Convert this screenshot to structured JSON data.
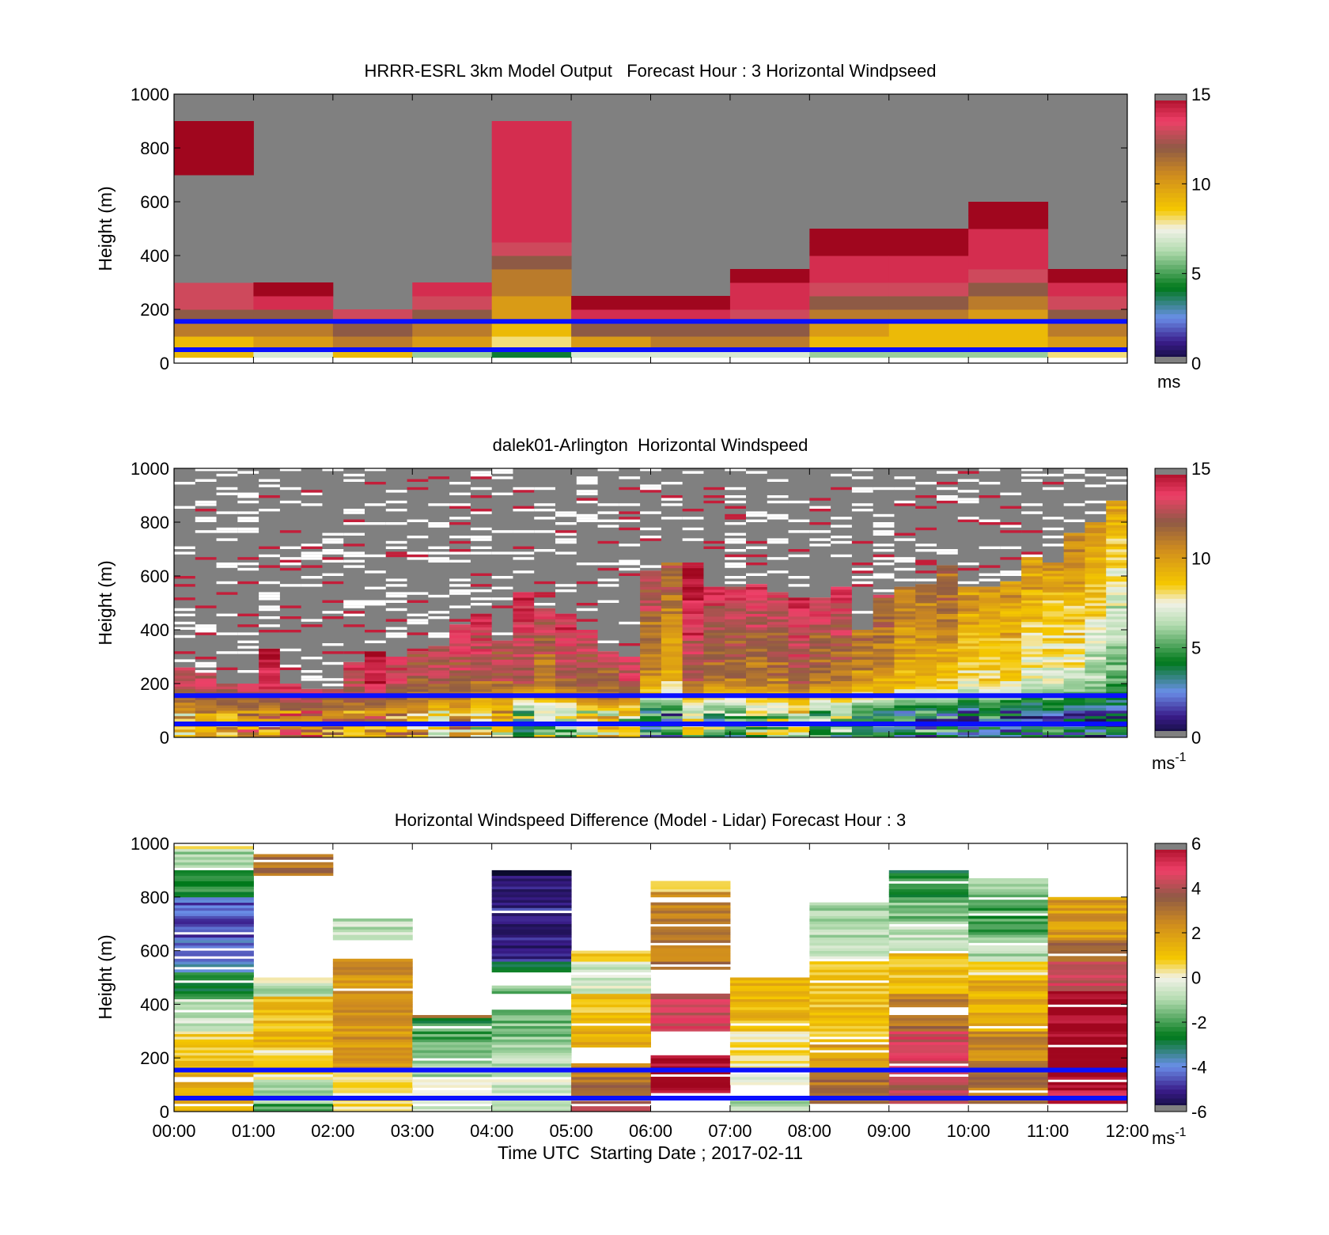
{
  "figure": {
    "xlabel": "Time UTC  Starting Date ; 2017-02-11",
    "x_ticks": [
      "00:00",
      "01:00",
      "02:00",
      "03:00",
      "04:00",
      "05:00",
      "06:00",
      "07:00",
      "08:00",
      "09:00",
      "10:00",
      "11:00",
      "12:00"
    ],
    "blue_reference_lines_m": [
      50,
      155
    ]
  },
  "chart_data": [
    {
      "type": "heatmap",
      "title": "HRRR-ESRL 3km Model Output   Forecast Hour : 3 Horizontal Windpseed",
      "ylabel": "Height (m)",
      "ylim": [
        0,
        1000
      ],
      "y_ticks": [
        "0",
        "200",
        "400",
        "600",
        "800",
        "1000"
      ],
      "colorbar": {
        "min": 0,
        "max": 15,
        "ticks": [
          "0",
          "5",
          "10",
          "15"
        ],
        "unit": "ms",
        "unit_sup": ""
      },
      "cell_height_m": 50,
      "hour_columns": [
        {
          "hour": "00:00",
          "windspeed_by_height": [
            9,
            9,
            11,
            12,
            13,
            13,
            0,
            0,
            0,
            0,
            0,
            0,
            0,
            0,
            15,
            15,
            15,
            15
          ]
        },
        {
          "hour": "01:00",
          "windspeed_by_height": [
            7,
            10,
            11,
            12,
            14,
            15
          ]
        },
        {
          "hour": "02:00",
          "windspeed_by_height": [
            9,
            11,
            12,
            13
          ]
        },
        {
          "hour": "03:00",
          "windspeed_by_height": [
            6,
            10,
            11,
            12,
            13,
            14
          ]
        },
        {
          "hour": "04:00",
          "windspeed_by_height": [
            4,
            8,
            9,
            10,
            10,
            11,
            11,
            12,
            13,
            14,
            14,
            14,
            14,
            14,
            14,
            14,
            14,
            14
          ]
        },
        {
          "hour": "05:00",
          "windspeed_by_height": [
            7,
            10,
            12,
            14,
            15
          ]
        },
        {
          "hour": "06:00",
          "windspeed_by_height": [
            7,
            11,
            12,
            14,
            15
          ]
        },
        {
          "hour": "07:00",
          "windspeed_by_height": [
            7,
            11,
            12,
            13,
            14,
            14,
            15
          ]
        },
        {
          "hour": "08:00",
          "windspeed_by_height": [
            6,
            9,
            10,
            11,
            12,
            13,
            14,
            14,
            15,
            15
          ]
        },
        {
          "hour": "09:00",
          "windspeed_by_height": [
            6,
            9,
            9,
            11,
            12,
            13,
            14,
            14,
            15,
            15
          ]
        },
        {
          "hour": "10:00",
          "windspeed_by_height": [
            6,
            9,
            9,
            10,
            11,
            12,
            13,
            14,
            14,
            14,
            15,
            15
          ]
        },
        {
          "hour": "11:00",
          "windspeed_by_height": [
            8,
            10,
            11,
            12,
            13,
            14,
            15
          ]
        }
      ]
    },
    {
      "type": "heatmap",
      "title": "dalek01-Arlington  Horizontal Windspeed",
      "ylabel": "Height (m)",
      "ylim": [
        0,
        1000
      ],
      "y_ticks": [
        "0",
        "200",
        "400",
        "600",
        "800",
        "1000"
      ],
      "colorbar": {
        "min": 0,
        "max": 15,
        "ticks": [
          "0",
          "5",
          "10",
          "15"
        ],
        "unit": "ms",
        "unit_sup": "-1"
      },
      "column_interval_minutes": 15,
      "valid_data_top_m": [
        260,
        240,
        200,
        200,
        330,
        200,
        180,
        180,
        280,
        320,
        300,
        320,
        340,
        420,
        460,
        360,
        540,
        480,
        460,
        400,
        320,
        300,
        620,
        650,
        640,
        560,
        560,
        570,
        540,
        520,
        520,
        560,
        400,
        530,
        560,
        570,
        640,
        560,
        560,
        580,
        670,
        650,
        760,
        800,
        880
      ],
      "windspeed_low_100_150_200_m": [
        [
          10,
          12,
          13
        ],
        [
          11,
          12,
          13
        ],
        [
          11,
          12,
          13
        ],
        [
          11,
          12,
          14
        ],
        [
          11,
          13,
          14
        ],
        [
          12,
          13,
          14
        ],
        [
          12,
          13,
          14
        ],
        [
          11,
          12,
          13
        ],
        [
          11,
          12,
          13
        ],
        [
          11,
          13,
          14
        ],
        [
          10,
          12,
          13
        ],
        [
          10,
          11,
          12
        ],
        [
          9,
          11,
          12
        ],
        [
          10,
          11,
          12
        ],
        [
          8,
          10,
          12
        ],
        [
          9,
          10,
          12
        ],
        [
          6,
          9,
          12
        ],
        [
          7,
          9,
          11
        ],
        [
          7,
          10,
          12
        ],
        [
          8,
          11,
          12
        ],
        [
          9,
          11,
          12
        ],
        [
          8,
          11,
          13
        ],
        [
          4,
          8,
          10
        ],
        [
          4,
          7,
          9
        ],
        [
          7,
          10,
          12
        ],
        [
          6,
          8,
          11
        ],
        [
          6,
          8,
          11
        ],
        [
          7,
          9,
          11
        ],
        [
          7,
          9,
          11
        ],
        [
          8,
          10,
          12
        ],
        [
          6,
          9,
          11
        ],
        [
          6,
          9,
          11
        ],
        [
          5,
          8,
          10
        ],
        [
          5,
          8,
          10
        ],
        [
          4,
          7,
          9
        ],
        [
          4,
          7,
          9
        ],
        [
          4,
          7,
          9
        ],
        [
          3,
          6,
          8
        ],
        [
          4,
          6,
          8
        ],
        [
          3,
          6,
          8
        ],
        [
          3,
          5,
          7
        ],
        [
          4,
          6,
          7
        ],
        [
          3,
          5,
          7
        ],
        [
          3,
          5,
          6
        ],
        [
          3,
          4,
          5
        ]
      ]
    },
    {
      "type": "heatmap",
      "title": "Horizontal Windspeed Difference (Model - Lidar) Forecast Hour : 3",
      "ylabel": "Height (m)",
      "ylim": [
        0,
        1000
      ],
      "y_ticks": [
        "0",
        "200",
        "400",
        "600",
        "800",
        "1000"
      ],
      "colorbar": {
        "min": -6,
        "max": 6,
        "ticks": [
          "-6",
          "-4",
          "-2",
          "0",
          "2",
          "4",
          "6"
        ],
        "unit": "ms",
        "unit_sup": "-1"
      },
      "hour_columns": [
        {
          "hour": "00:00",
          "segments_m": [
            [
              0,
              160,
              1.5
            ],
            [
              160,
              300,
              0.8
            ],
            [
              300,
              420,
              -0.6
            ],
            [
              420,
              520,
              -2.5
            ],
            [
              520,
              640,
              -4
            ],
            [
              640,
              800,
              -4.5
            ],
            [
              800,
              900,
              -2.2
            ],
            [
              900,
              980,
              -1
            ],
            [
              980,
              1000,
              1
            ]
          ]
        },
        {
          "hour": "01:00",
          "segments_m": [
            [
              0,
              30,
              -2
            ],
            [
              30,
              120,
              -0.8
            ],
            [
              120,
              230,
              0.5
            ],
            [
              230,
              380,
              1.2
            ],
            [
              380,
              430,
              1
            ],
            [
              430,
              470,
              -0.8
            ],
            [
              470,
              500,
              0
            ],
            [
              880,
              960,
              3
            ]
          ]
        },
        {
          "hour": "02:00",
          "segments_m": [
            [
              0,
              40,
              0.6
            ],
            [
              40,
              160,
              0.2
            ],
            [
              160,
              570,
              2.2
            ],
            [
              640,
              720,
              -0.8
            ]
          ]
        },
        {
          "hour": "03:00",
          "segments_m": [
            [
              0,
              120,
              -0.5
            ],
            [
              120,
              210,
              -1
            ],
            [
              210,
              260,
              -1.5
            ],
            [
              260,
              330,
              -2
            ],
            [
              330,
              350,
              -2.5
            ],
            [
              350,
              360,
              3
            ]
          ]
        },
        {
          "hour": "04:00",
          "segments_m": [
            [
              0,
              120,
              -0.5
            ],
            [
              120,
              280,
              -1
            ],
            [
              280,
              380,
              -1.5
            ],
            [
              440,
              470,
              -1.5
            ],
            [
              520,
              560,
              -2.5
            ],
            [
              560,
              760,
              -5
            ],
            [
              760,
              880,
              -5.5
            ],
            [
              880,
              900,
              -6
            ]
          ]
        },
        {
          "hour": "05:00",
          "segments_m": [
            [
              0,
              60,
              4
            ],
            [
              60,
              100,
              3.5
            ],
            [
              100,
              180,
              2.8
            ],
            [
              240,
              340,
              1.5
            ],
            [
              340,
              440,
              1
            ],
            [
              440,
              560,
              -0.5
            ],
            [
              560,
              600,
              0.8
            ]
          ]
        },
        {
          "hour": "06:00",
          "segments_m": [
            [
              70,
              210,
              6
            ],
            [
              300,
              440,
              4.5
            ],
            [
              530,
              560,
              3.5
            ],
            [
              560,
              820,
              2.8
            ],
            [
              820,
              850,
              0
            ],
            [
              850,
              860,
              0.8
            ]
          ]
        },
        {
          "hour": "07:00",
          "segments_m": [
            [
              0,
              40,
              -1
            ],
            [
              100,
              140,
              0
            ],
            [
              160,
              300,
              0.5
            ],
            [
              300,
              500,
              1.2
            ]
          ]
        },
        {
          "hour": "08:00",
          "segments_m": [
            [
              30,
              160,
              3
            ],
            [
              160,
              260,
              2
            ],
            [
              260,
              560,
              1
            ],
            [
              560,
              640,
              -0.5
            ],
            [
              640,
              780,
              -1
            ]
          ]
        },
        {
          "hour": "09:00",
          "segments_m": [
            [
              30,
              160,
              4
            ],
            [
              160,
              300,
              4.5
            ],
            [
              300,
              440,
              3
            ],
            [
              440,
              600,
              1
            ],
            [
              600,
              700,
              -0.6
            ],
            [
              700,
              800,
              -1.5
            ],
            [
              800,
              900,
              -2.5
            ]
          ]
        },
        {
          "hour": "10:00",
          "segments_m": [
            [
              30,
              160,
              3
            ],
            [
              160,
              300,
              2.5
            ],
            [
              300,
              500,
              1.5
            ],
            [
              500,
              560,
              0.5
            ],
            [
              560,
              650,
              -1
            ],
            [
              650,
              760,
              -2
            ],
            [
              760,
              870,
              -1.5
            ]
          ]
        },
        {
          "hour": "11:00",
          "segments_m": [
            [
              30,
              80,
              5.5
            ],
            [
              80,
              450,
              6
            ],
            [
              450,
              560,
              4.5
            ],
            [
              560,
              640,
              3.5
            ],
            [
              640,
              800,
              2
            ]
          ]
        }
      ]
    }
  ]
}
